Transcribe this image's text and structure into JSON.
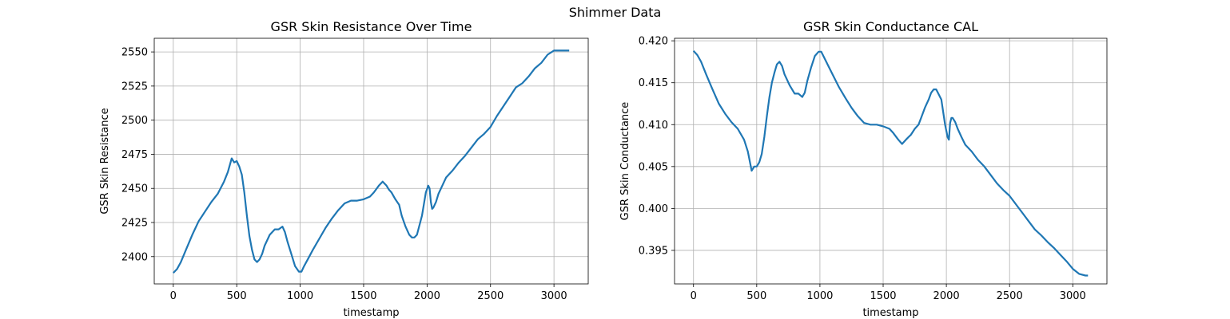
{
  "figure": {
    "suptitle": "Shimmer Data"
  },
  "chart_data": [
    {
      "type": "line",
      "title": "GSR Skin Resistance Over Time",
      "xlabel": "timestamp",
      "ylabel": "GSR Skin Resistance",
      "xlim": [
        -150,
        3270
      ],
      "ylim": [
        2380,
        2560
      ],
      "xticks": [
        0,
        500,
        1000,
        1500,
        2000,
        2500,
        3000
      ],
      "yticks": [
        2400,
        2425,
        2450,
        2475,
        2500,
        2525,
        2550
      ],
      "grid": true,
      "color": "#1f77b4",
      "series": [
        {
          "x": [
            0,
            30,
            60,
            100,
            150,
            200,
            250,
            300,
            350,
            400,
            430,
            460,
            480,
            500,
            520,
            540,
            560,
            580,
            600,
            620,
            640,
            660,
            680,
            700,
            720,
            760,
            800,
            830,
            860,
            880,
            900,
            930,
            960,
            990,
            1010,
            1030,
            1060,
            1100,
            1150,
            1200,
            1250,
            1300,
            1350,
            1400,
            1450,
            1500,
            1550,
            1580,
            1620,
            1650,
            1680,
            1700,
            1720,
            1750,
            1780,
            1800,
            1830,
            1860,
            1880,
            1900,
            1920,
            1960,
            1990,
            2010,
            2020,
            2030,
            2040,
            2050,
            2070,
            2090,
            2120,
            2150,
            2200,
            2250,
            2300,
            2350,
            2400,
            2450,
            2500,
            2550,
            2600,
            2650,
            2700,
            2750,
            2800,
            2850,
            2900,
            2950,
            3000,
            3050,
            3100,
            3120
          ],
          "y": [
            2388,
            2391,
            2396,
            2405,
            2416,
            2426,
            2433,
            2440,
            2446,
            2455,
            2462,
            2472,
            2469,
            2470,
            2466,
            2460,
            2447,
            2430,
            2415,
            2405,
            2398,
            2396,
            2398,
            2402,
            2408,
            2416,
            2420,
            2420,
            2422,
            2418,
            2411,
            2402,
            2393,
            2389,
            2389,
            2393,
            2398,
            2405,
            2413,
            2421,
            2428,
            2434,
            2439,
            2441,
            2441,
            2442,
            2444,
            2447,
            2452,
            2455,
            2452,
            2449,
            2447,
            2442,
            2438,
            2430,
            2422,
            2416,
            2414,
            2414,
            2416,
            2430,
            2447,
            2452,
            2450,
            2440,
            2435,
            2436,
            2440,
            2446,
            2452,
            2458,
            2463,
            2469,
            2474,
            2480,
            2486,
            2490,
            2495,
            2503,
            2510,
            2517,
            2524,
            2527,
            2532,
            2538,
            2542,
            2548,
            2551,
            2551,
            2551,
            2551
          ]
        }
      ]
    },
    {
      "type": "line",
      "title": "GSR Skin Conductance CAL",
      "xlabel": "timestamp",
      "ylabel": "GSR Skin Conductance",
      "xlim": [
        -150,
        3270
      ],
      "ylim": [
        0.391,
        0.4203
      ],
      "xticks": [
        0,
        500,
        1000,
        1500,
        2000,
        2500,
        3000
      ],
      "yticks": [
        0.395,
        0.4,
        0.405,
        0.41,
        0.415,
        0.42
      ],
      "ytick_labels": [
        "0.395",
        "0.400",
        "0.405",
        "0.410",
        "0.415",
        "0.420"
      ],
      "grid": true,
      "color": "#1f77b4",
      "series": [
        {
          "x": [
            0,
            30,
            60,
            100,
            150,
            200,
            250,
            300,
            350,
            400,
            430,
            460,
            480,
            500,
            520,
            540,
            560,
            580,
            600,
            620,
            640,
            660,
            680,
            700,
            720,
            760,
            800,
            830,
            860,
            880,
            900,
            930,
            960,
            990,
            1010,
            1030,
            1060,
            1100,
            1150,
            1200,
            1250,
            1300,
            1350,
            1400,
            1450,
            1500,
            1550,
            1580,
            1620,
            1650,
            1680,
            1700,
            1720,
            1750,
            1780,
            1800,
            1830,
            1860,
            1880,
            1900,
            1920,
            1960,
            1990,
            2010,
            2020,
            2030,
            2040,
            2050,
            2070,
            2090,
            2120,
            2150,
            2200,
            2250,
            2300,
            2350,
            2400,
            2450,
            2500,
            2550,
            2600,
            2650,
            2700,
            2750,
            2800,
            2850,
            2900,
            2950,
            3000,
            3050,
            3100,
            3120
          ],
          "y": [
            0.4188,
            0.4183,
            0.4175,
            0.416,
            0.4142,
            0.4125,
            0.4113,
            0.4103,
            0.4095,
            0.4082,
            0.4068,
            0.4045,
            0.405,
            0.405,
            0.4055,
            0.4065,
            0.4085,
            0.411,
            0.4132,
            0.415,
            0.4162,
            0.4172,
            0.4175,
            0.417,
            0.416,
            0.4147,
            0.4137,
            0.4137,
            0.4133,
            0.4138,
            0.4152,
            0.4168,
            0.4182,
            0.4187,
            0.4187,
            0.4181,
            0.4172,
            0.416,
            0.4145,
            0.4132,
            0.412,
            0.411,
            0.4102,
            0.41,
            0.41,
            0.4098,
            0.4095,
            0.409,
            0.4082,
            0.4077,
            0.4082,
            0.4085,
            0.4088,
            0.4095,
            0.41,
            0.4108,
            0.412,
            0.413,
            0.4138,
            0.4142,
            0.4142,
            0.413,
            0.41,
            0.4085,
            0.4082,
            0.4102,
            0.4108,
            0.4108,
            0.4103,
            0.4095,
            0.4085,
            0.4076,
            0.4068,
            0.4058,
            0.405,
            0.404,
            0.403,
            0.4022,
            0.4015,
            0.4005,
            0.3995,
            0.3985,
            0.3975,
            0.3968,
            0.396,
            0.3953,
            0.3945,
            0.3937,
            0.3928,
            0.3922,
            0.392,
            0.392
          ]
        }
      ]
    }
  ]
}
